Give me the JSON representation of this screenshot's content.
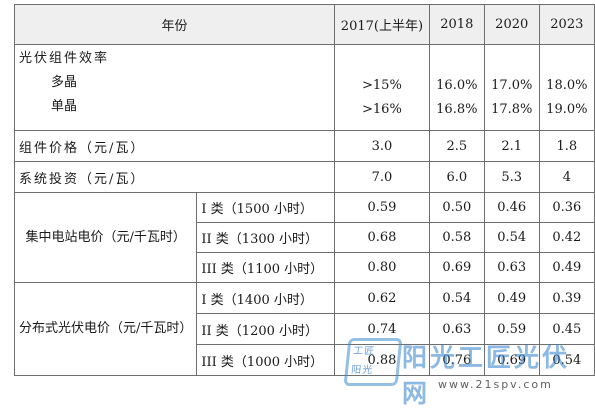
{
  "header": {
    "year_label": "年份",
    "years": [
      "2017(上半年)",
      "2018",
      "2020",
      "2023"
    ]
  },
  "efficiency": {
    "label": "光伏组件效率",
    "rows": [
      {
        "name": "多晶",
        "values": [
          ">15%",
          "16.0%",
          "17.0%",
          "18.0%"
        ]
      },
      {
        "name": "单晶",
        "values": [
          ">16%",
          "16.8%",
          "17.8%",
          "19.0%"
        ]
      }
    ]
  },
  "module_price": {
    "label": "组件价格（元/瓦）",
    "values": [
      "3.0",
      "2.5",
      "2.1",
      "1.8"
    ]
  },
  "system_invest": {
    "label": "系统投资（元/瓦）",
    "values": [
      "7.0",
      "6.0",
      "5.3",
      "4"
    ]
  },
  "central": {
    "group_label": "集中电站电价（元/千瓦时）",
    "rows": [
      {
        "class": "I 类（1500 小时）",
        "values": [
          "0.59",
          "0.50",
          "0.46",
          "0.36"
        ]
      },
      {
        "class": "II 类（1300 小时）",
        "values": [
          "0.68",
          "0.58",
          "0.54",
          "0.42"
        ]
      },
      {
        "class": "III 类（1100 小时）",
        "values": [
          "0.80",
          "0.69",
          "0.63",
          "0.49"
        ]
      }
    ]
  },
  "distributed": {
    "group_label": "分布式光伏电价（元/千瓦时）",
    "rows": [
      {
        "class": "I 类（1400 小时）",
        "values": [
          "0.62",
          "0.54",
          "0.49",
          "0.39"
        ]
      },
      {
        "class": "II 类（1200 小时）",
        "values": [
          "0.74",
          "0.63",
          "0.59",
          "0.45"
        ]
      },
      {
        "class": "III 类（1000 小时）",
        "values": [
          "0.88",
          "0.76",
          "0.69",
          "0.54"
        ]
      }
    ]
  },
  "watermark": {
    "logo_top": "工匠",
    "logo_bottom": "阳光",
    "brand": "阳光工匠光伏网",
    "url": "www.21spv.com"
  }
}
